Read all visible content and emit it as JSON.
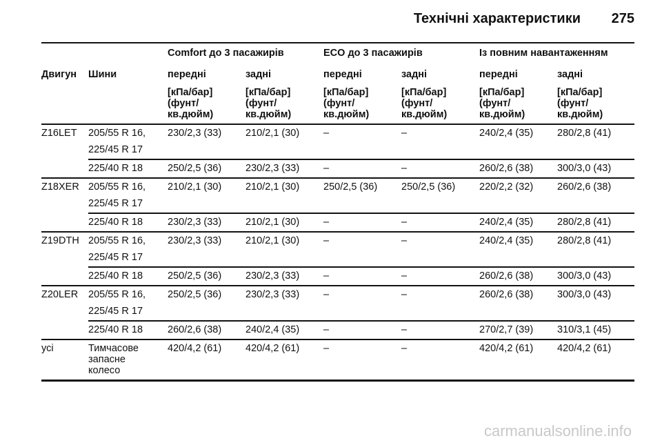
{
  "header": {
    "title": "Технічні характеристики",
    "page": "275"
  },
  "table": {
    "engine_label": "Двигун",
    "tires_label": "Шини",
    "groups": [
      "Comfort до 3 пасажирів",
      "ECO до 3 пасажирів",
      "Із повним навантаженням"
    ],
    "columns": [
      {
        "position": "передні",
        "unit": [
          "[кПа/бар]",
          "(фунт/",
          "кв.дюйм)"
        ]
      },
      {
        "position": "задні",
        "unit": [
          "[кПа/бар]",
          "(фунт/",
          "кв.дюйм)"
        ]
      },
      {
        "position": "передні",
        "unit": [
          "[кПа/бар]",
          "(фунт/",
          "кв.дюйм)"
        ]
      },
      {
        "position": "задні",
        "unit": [
          "[кПа/бар]",
          "(фунт/",
          "кв.дюйм)"
        ]
      },
      {
        "position": "передні",
        "unit": [
          "[кПа/бар]",
          "(фунт/",
          "кв.дюйм)"
        ]
      },
      {
        "position": "задні",
        "unit": [
          "[кПа/бар]",
          "(фунт/",
          "кв.дюйм)"
        ]
      }
    ],
    "rows": [
      {
        "engine": "Z16LET",
        "subrows": [
          {
            "tires": [
              "205/55 R 16,",
              "225/45 R 17"
            ],
            "values": [
              "230/2,3 (33)",
              "210/2,1 (30)",
              "–",
              "–",
              "240/2,4 (35)",
              "280/2,8 (41)"
            ]
          },
          {
            "tires": [
              "225/40 R 18"
            ],
            "values": [
              "250/2,5 (36)",
              "230/2,3 (33)",
              "–",
              "–",
              "260/2,6 (38)",
              "300/3,0 (43)"
            ]
          }
        ]
      },
      {
        "engine": "Z18XER",
        "subrows": [
          {
            "tires": [
              "205/55 R 16,",
              "225/45 R 17"
            ],
            "values": [
              "210/2,1 (30)",
              "210/2,1 (30)",
              "250/2,5 (36)",
              "250/2,5 (36)",
              "220/2,2 (32)",
              "260/2,6 (38)"
            ]
          },
          {
            "tires": [
              "225/40 R 18"
            ],
            "values": [
              "230/2,3 (33)",
              "210/2,1 (30)",
              "–",
              "–",
              "240/2,4 (35)",
              "280/2,8 (41)"
            ]
          }
        ]
      },
      {
        "engine": "Z19DTH",
        "subrows": [
          {
            "tires": [
              "205/55 R 16,",
              "225/45 R 17"
            ],
            "values": [
              "230/2,3 (33)",
              "210/2,1 (30)",
              "–",
              "–",
              "240/2,4 (35)",
              "280/2,8 (41)"
            ]
          },
          {
            "tires": [
              "225/40 R 18"
            ],
            "values": [
              "250/2,5 (36)",
              "230/2,3 (33)",
              "–",
              "–",
              "260/2,6 (38)",
              "300/3,0 (43)"
            ]
          }
        ]
      },
      {
        "engine": "Z20LER",
        "subrows": [
          {
            "tires": [
              "205/55 R 16,",
              "225/45 R 17"
            ],
            "values": [
              "250/2,5 (36)",
              "230/2,3 (33)",
              "–",
              "–",
              "260/2,6 (38)",
              "300/3,0 (43)"
            ]
          },
          {
            "tires": [
              "225/40 R 18"
            ],
            "values": [
              "260/2,6 (38)",
              "240/2,4 (35)",
              "–",
              "–",
              "270/2,7 (39)",
              "310/3,1 (45)"
            ]
          }
        ]
      },
      {
        "engine": "усі",
        "subrows": [
          {
            "tires": [
              "Тимчасове",
              "запасне",
              "колесо"
            ],
            "values": [
              "420/4,2 (61)",
              "420/4,2 (61)",
              "–",
              "–",
              "420/4,2 (61)",
              "420/4,2 (61)"
            ]
          }
        ]
      }
    ]
  },
  "watermark": "carmanualsonline.info"
}
